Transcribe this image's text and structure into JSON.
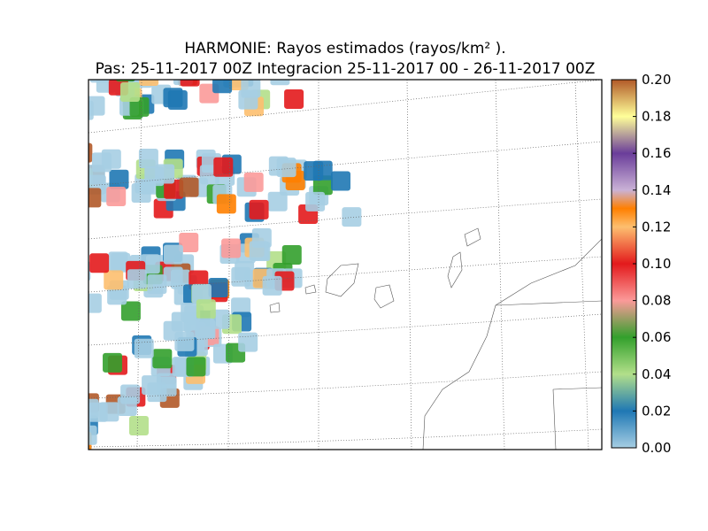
{
  "title": {
    "line1": "HARMONIE: Rayos estimados  (rayos/km² ).",
    "line2": "Pas: 25-11-2017 00Z Integracion 25-11-2017 00 - 26-11-2017 00Z"
  },
  "colorbar": {
    "range": [
      0,
      0.2
    ],
    "ticks": [
      {
        "value": 0,
        "label": "0.00"
      },
      {
        "value": 0.02,
        "label": "0.02"
      },
      {
        "value": 0.04,
        "label": "0.04"
      },
      {
        "value": 0.06,
        "label": "0.06"
      },
      {
        "value": 0.08,
        "label": "0.08"
      },
      {
        "value": 0.1,
        "label": "0.10"
      },
      {
        "value": 0.12,
        "label": "0.12"
      },
      {
        "value": 0.14,
        "label": "0.14"
      },
      {
        "value": 0.16,
        "label": "0.16"
      },
      {
        "value": 0.18,
        "label": "0.18"
      },
      {
        "value": 0.2,
        "label": "0.20"
      }
    ]
  }
}
